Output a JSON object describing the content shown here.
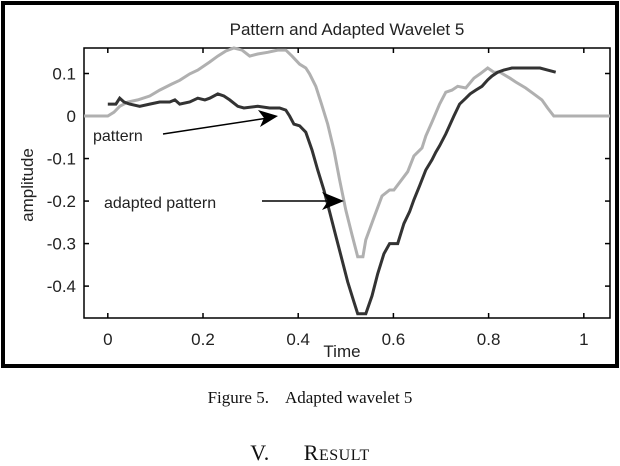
{
  "figure": {
    "title": "Pattern and Adapted Wavelet 5",
    "xlabel": "Time",
    "ylabel": "amplitude",
    "annotations": [
      {
        "text": "pattern",
        "target": "pattern"
      },
      {
        "text": "adapted pattern",
        "target": "adapted pattern"
      }
    ]
  },
  "caption": {
    "label": "Figure 5.",
    "text": "Adapted wavelet 5"
  },
  "section": {
    "number": "V.",
    "title_initial": "R",
    "title_rest": "ESULT"
  },
  "chart_data": {
    "type": "line",
    "title": "Pattern and Adapted Wavelet 5",
    "xlabel": "Time",
    "ylabel": "amplitude",
    "xlim": [
      -0.05,
      1.055
    ],
    "ylim": [
      -0.475,
      0.16
    ],
    "xticks": [
      0,
      0.2,
      0.4,
      0.6,
      0.8,
      1
    ],
    "xtick_labels": [
      "0",
      "0.2",
      "0.4",
      "0.6",
      "0.8",
      "1"
    ],
    "yticks": [
      0.1,
      0,
      -0.1,
      -0.2,
      -0.3,
      -0.4
    ],
    "ytick_labels": [
      "0.1",
      "0",
      "-0.1",
      "-0.2",
      "-0.3",
      "-0.4"
    ],
    "grid": false,
    "legend": "none (inline arrow annotations)",
    "series": [
      {
        "name": "adapted pattern",
        "color": "#b0b0b0",
        "x": [
          -0.05,
          0.0,
          0.013,
          0.025,
          0.042,
          0.063,
          0.088,
          0.109,
          0.134,
          0.151,
          0.172,
          0.189,
          0.214,
          0.231,
          0.248,
          0.265,
          0.282,
          0.298,
          0.315,
          0.336,
          0.357,
          0.374,
          0.387,
          0.403,
          0.416,
          0.424,
          0.437,
          0.449,
          0.462,
          0.475,
          0.487,
          0.5,
          0.513,
          0.525,
          0.525,
          0.536,
          0.542,
          0.559,
          0.576,
          0.592,
          0.601,
          0.63,
          0.643,
          0.66,
          0.668,
          0.681,
          0.697,
          0.71,
          0.723,
          0.735,
          0.752,
          0.769,
          0.782,
          0.798,
          0.811,
          0.824,
          0.845,
          0.857,
          0.878,
          0.895,
          0.912,
          0.924,
          0.937,
          0.95,
          1.055
        ],
        "y": [
          0.0,
          0.0,
          0.009,
          0.023,
          0.033,
          0.038,
          0.047,
          0.061,
          0.075,
          0.084,
          0.099,
          0.108,
          0.127,
          0.141,
          0.153,
          0.16,
          0.155,
          0.141,
          0.146,
          0.15,
          0.155,
          0.155,
          0.141,
          0.122,
          0.113,
          0.099,
          0.07,
          0.028,
          -0.019,
          -0.08,
          -0.15,
          -0.221,
          -0.279,
          -0.331,
          -0.331,
          -0.331,
          -0.291,
          -0.239,
          -0.188,
          -0.174,
          -0.174,
          -0.131,
          -0.094,
          -0.075,
          -0.047,
          -0.014,
          0.028,
          0.056,
          0.061,
          0.07,
          0.066,
          0.089,
          0.099,
          0.113,
          0.103,
          0.103,
          0.089,
          0.08,
          0.066,
          0.052,
          0.038,
          0.019,
          0.0,
          0.0,
          0.0
        ]
      },
      {
        "name": "pattern",
        "color": "#333333",
        "x": [
          0.0,
          0.017,
          0.025,
          0.034,
          0.046,
          0.067,
          0.088,
          0.109,
          0.13,
          0.141,
          0.151,
          0.172,
          0.189,
          0.204,
          0.214,
          0.231,
          0.244,
          0.256,
          0.273,
          0.286,
          0.315,
          0.34,
          0.361,
          0.374,
          0.382,
          0.391,
          0.403,
          0.416,
          0.429,
          0.441,
          0.454,
          0.466,
          0.479,
          0.492,
          0.504,
          0.517,
          0.525,
          0.542,
          0.555,
          0.567,
          0.58,
          0.592,
          0.609,
          0.622,
          0.634,
          0.643,
          0.655,
          0.668,
          0.681,
          0.689,
          0.697,
          0.71,
          0.727,
          0.739,
          0.752,
          0.761,
          0.773,
          0.786,
          0.798,
          0.807,
          0.819,
          0.832,
          0.849,
          0.87,
          0.891,
          0.908,
          0.924,
          0.941
        ],
        "y": [
          0.028,
          0.028,
          0.042,
          0.033,
          0.028,
          0.023,
          0.028,
          0.033,
          0.033,
          0.038,
          0.028,
          0.033,
          0.042,
          0.038,
          0.042,
          0.052,
          0.047,
          0.038,
          0.023,
          0.019,
          0.023,
          0.019,
          0.019,
          0.014,
          0.0,
          -0.019,
          -0.023,
          -0.038,
          -0.08,
          -0.127,
          -0.174,
          -0.225,
          -0.282,
          -0.338,
          -0.39,
          -0.437,
          -0.465,
          -0.465,
          -0.423,
          -0.371,
          -0.324,
          -0.3,
          -0.3,
          -0.253,
          -0.225,
          -0.197,
          -0.164,
          -0.127,
          -0.103,
          -0.085,
          -0.07,
          -0.042,
          0.0,
          0.028,
          0.042,
          0.052,
          0.061,
          0.07,
          0.085,
          0.094,
          0.103,
          0.108,
          0.113,
          0.113,
          0.113,
          0.113,
          0.108,
          0.103
        ]
      }
    ],
    "annotations": [
      {
        "text": "pattern",
        "arrow_to": [
          0.355,
          0.0
        ],
        "text_at": [
          -0.03,
          -0.045
        ]
      },
      {
        "text": "adapted pattern",
        "arrow_to": [
          0.492,
          -0.2
        ],
        "text_at": [
          -0.01,
          -0.2
        ]
      }
    ]
  }
}
